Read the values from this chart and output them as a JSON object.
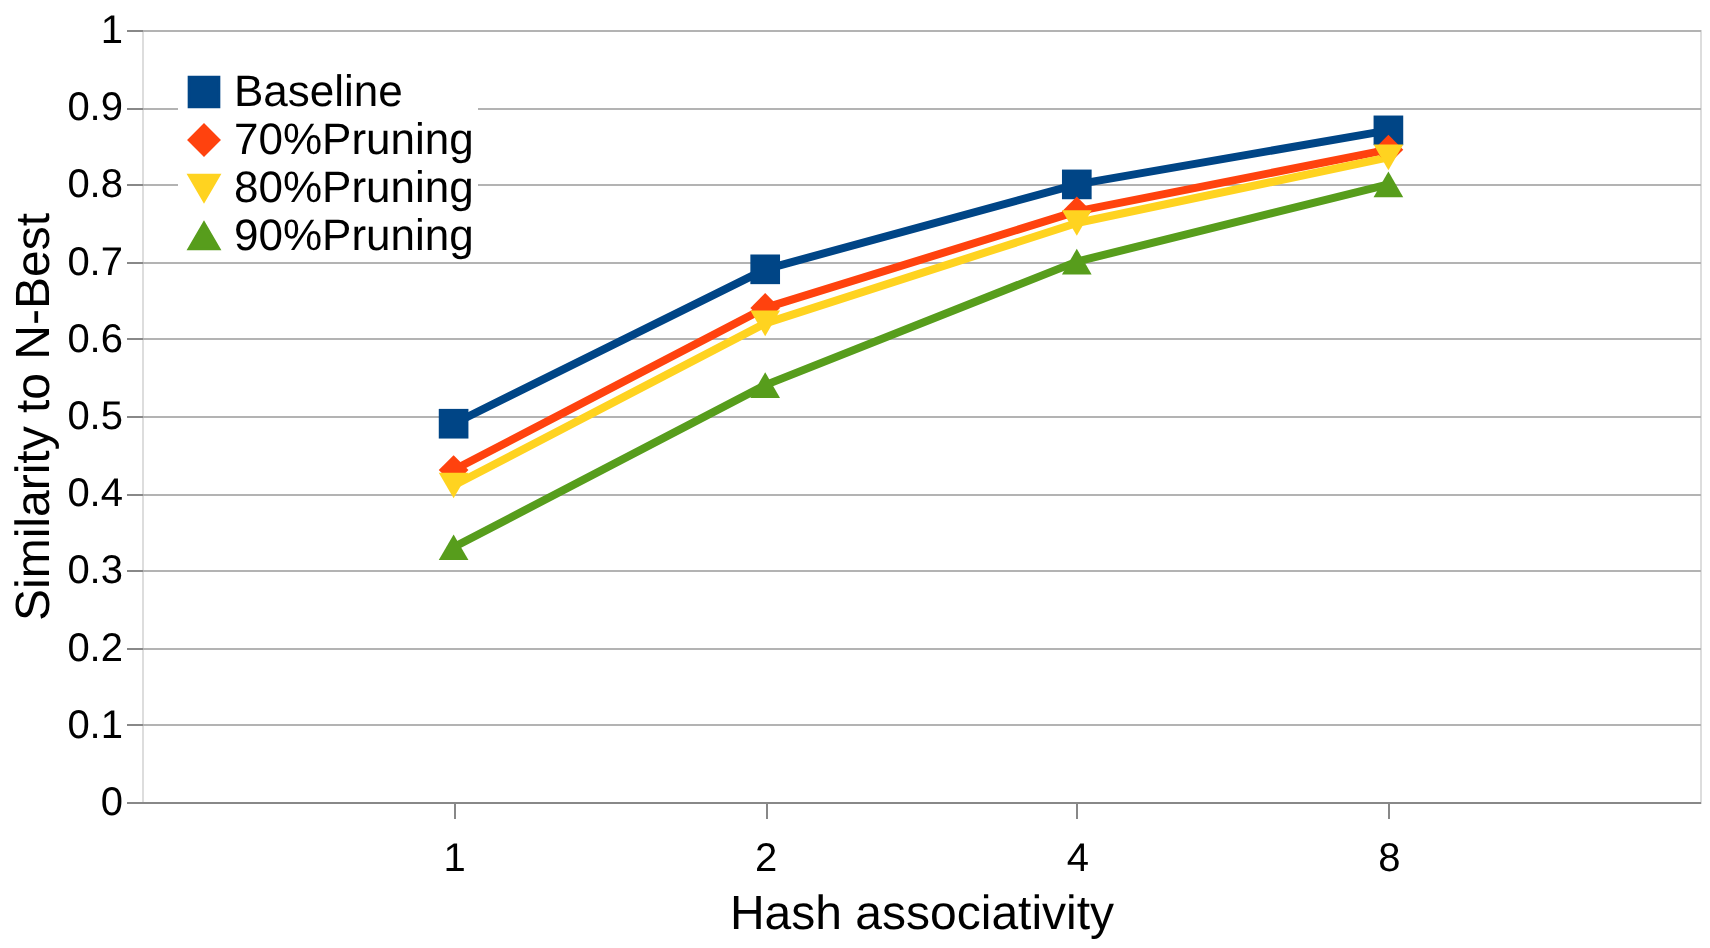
{
  "chart_data": {
    "type": "line",
    "xlabel": "Hash associativity",
    "ylabel": "Similarity to N-Best",
    "categories": [
      "1",
      "2",
      "4",
      "8"
    ],
    "ylim": [
      0,
      1
    ],
    "yticks": [
      0,
      0.1,
      0.2,
      0.3,
      0.4,
      0.5,
      0.6,
      0.7,
      0.8,
      0.9,
      1
    ],
    "grid": "y",
    "legend": "top left",
    "line_style": "solid",
    "series": [
      {
        "name": "Baseline",
        "color": "#004586",
        "marker": "square",
        "values": [
          0.49,
          0.69,
          0.8,
          0.87
        ]
      },
      {
        "name": "70%Pruning",
        "color": "#ff420e",
        "marker": "diamond",
        "values": [
          0.43,
          0.64,
          0.765,
          0.845
        ]
      },
      {
        "name": "80%Pruning",
        "color": "#ffd320",
        "marker": "triangle-down",
        "values": [
          0.41,
          0.62,
          0.75,
          0.835
        ]
      },
      {
        "name": "90%Pruning",
        "color": "#579d1c",
        "marker": "triangle",
        "values": [
          0.33,
          0.54,
          0.7,
          0.8
        ]
      }
    ]
  }
}
